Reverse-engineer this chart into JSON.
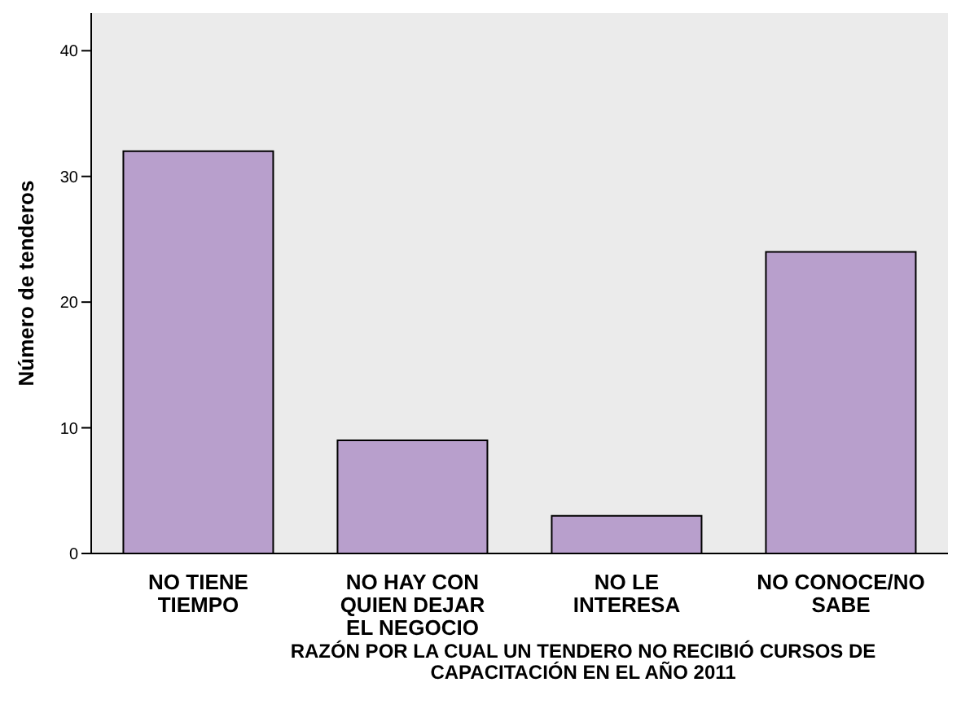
{
  "chart_data": {
    "type": "bar",
    "xlabel": "RAZÓN POR LA CUAL UN TENDERO NO RECIBIÓ CURSOS DE CAPACITACIÓN EN EL AÑO 2011",
    "ylabel": "Número de tenderos",
    "categories": [
      "NO TIENE TIEMPO",
      "NO HAY CON QUIEN DEJAR EL NEGOCIO",
      "NO LE INTERESA",
      "NO CONOCE/NO SABE"
    ],
    "values": [
      32,
      9,
      3,
      24
    ],
    "color": "#b89fcc",
    "ylim": [
      0,
      43
    ],
    "yticks": [
      0,
      10,
      20,
      30,
      40
    ],
    "grid": false,
    "legend": false
  }
}
